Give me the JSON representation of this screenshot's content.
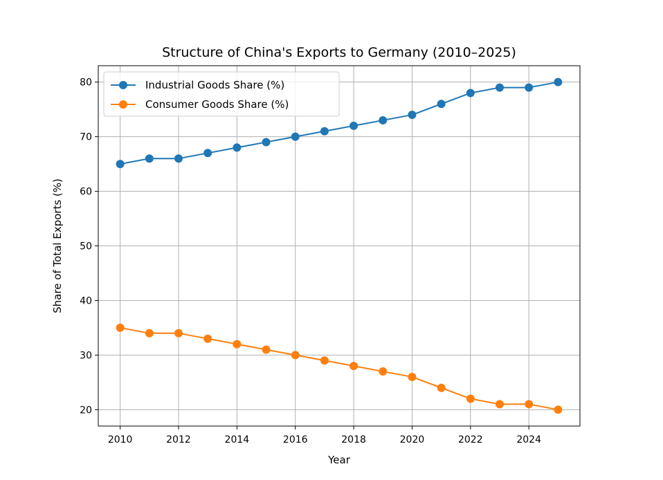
{
  "chart_data": {
    "type": "line",
    "title": "Structure of China's Exports to Germany (2010–2025)",
    "xlabel": "Year",
    "ylabel": "Share of Total Exports (%)",
    "x": [
      2010,
      2011,
      2012,
      2013,
      2014,
      2015,
      2016,
      2017,
      2018,
      2019,
      2020,
      2021,
      2022,
      2023,
      2024,
      2025
    ],
    "xlim": [
      2009.25,
      2025.75
    ],
    "ylim": [
      17,
      83
    ],
    "xticks": [
      2010,
      2012,
      2014,
      2016,
      2018,
      2020,
      2022,
      2024
    ],
    "xtick_labels": [
      "2010",
      "2012",
      "2014",
      "2016",
      "2018",
      "2020",
      "2022",
      "2024"
    ],
    "yticks": [
      20,
      30,
      40,
      50,
      60,
      70,
      80
    ],
    "ytick_labels": [
      "20",
      "30",
      "40",
      "50",
      "60",
      "70",
      "80"
    ],
    "grid": true,
    "legend_position": "top-left",
    "series": [
      {
        "name": "Industrial Goods Share (%)",
        "color": "#1f77b4",
        "marker": "circle",
        "values": [
          65,
          66,
          66,
          67,
          68,
          69,
          70,
          71,
          72,
          73,
          74,
          76,
          78,
          79,
          79,
          80
        ]
      },
      {
        "name": "Consumer Goods Share (%)",
        "color": "#ff7f0e",
        "marker": "circle",
        "values": [
          35,
          34,
          34,
          33,
          32,
          31,
          30,
          29,
          28,
          27,
          26,
          24,
          22,
          21,
          21,
          20
        ]
      }
    ]
  }
}
